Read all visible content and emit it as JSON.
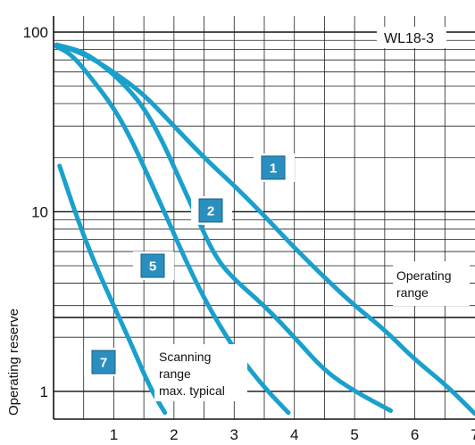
{
  "chart_data": {
    "type": "line",
    "title": "WL18-3",
    "ylabel": "Operating reserve",
    "xlabel": "",
    "xlim": [
      0,
      7
    ],
    "ylim": [
      0.7,
      100
    ],
    "y_scale": "log",
    "grid": true,
    "x_ticks": [
      "1",
      "2",
      "3",
      "4",
      "5",
      "6",
      "7"
    ],
    "y_ticks": [
      "1",
      "10",
      "100"
    ],
    "color": "#1aa0cc",
    "annotations": {
      "operating_range": [
        "Operating",
        "range"
      ],
      "scanning_range": [
        "Scanning",
        "range",
        "max. typical"
      ]
    },
    "series": [
      {
        "name": "1",
        "points": [
          [
            0.05,
            85
          ],
          [
            0.5,
            76
          ],
          [
            1,
            60
          ],
          [
            1.5,
            45
          ],
          [
            2,
            30
          ],
          [
            2.5,
            20
          ],
          [
            3,
            14
          ],
          [
            3.5,
            9.5
          ],
          [
            4,
            6.3
          ],
          [
            4.5,
            4.3
          ],
          [
            5,
            3.0
          ],
          [
            5.5,
            2.2
          ],
          [
            6,
            1.5
          ],
          [
            6.5,
            1.1
          ],
          [
            7,
            0.75
          ]
        ]
      },
      {
        "name": "2",
        "points": [
          [
            0.05,
            85
          ],
          [
            0.5,
            78
          ],
          [
            0.9,
            62
          ],
          [
            1.2,
            50
          ],
          [
            1.5,
            38
          ],
          [
            1.8,
            25
          ],
          [
            2.1,
            15
          ],
          [
            2.4,
            9
          ],
          [
            2.7,
            5.5
          ],
          [
            3,
            4.2
          ],
          [
            3.5,
            3.0
          ],
          [
            4,
            2.0
          ],
          [
            4.5,
            1.3
          ],
          [
            5,
            1.0
          ],
          [
            5.6,
            0.78
          ]
        ]
      },
      {
        "name": "5",
        "points": [
          [
            0.05,
            83
          ],
          [
            0.3,
            75
          ],
          [
            0.6,
            57
          ],
          [
            1,
            38
          ],
          [
            1.3,
            25
          ],
          [
            1.6,
            15
          ],
          [
            1.9,
            9
          ],
          [
            2.2,
            5.3
          ],
          [
            2.5,
            3.3
          ],
          [
            2.8,
            2.2
          ],
          [
            3.1,
            1.55
          ],
          [
            3.5,
            1.05
          ],
          [
            3.9,
            0.76
          ]
        ]
      },
      {
        "name": "7",
        "points": [
          [
            0.1,
            18
          ],
          [
            0.4,
            9
          ],
          [
            0.7,
            5
          ],
          [
            1.0,
            3
          ],
          [
            1.3,
            1.8
          ],
          [
            1.6,
            1.05
          ],
          [
            1.85,
            0.76
          ]
        ]
      }
    ]
  }
}
